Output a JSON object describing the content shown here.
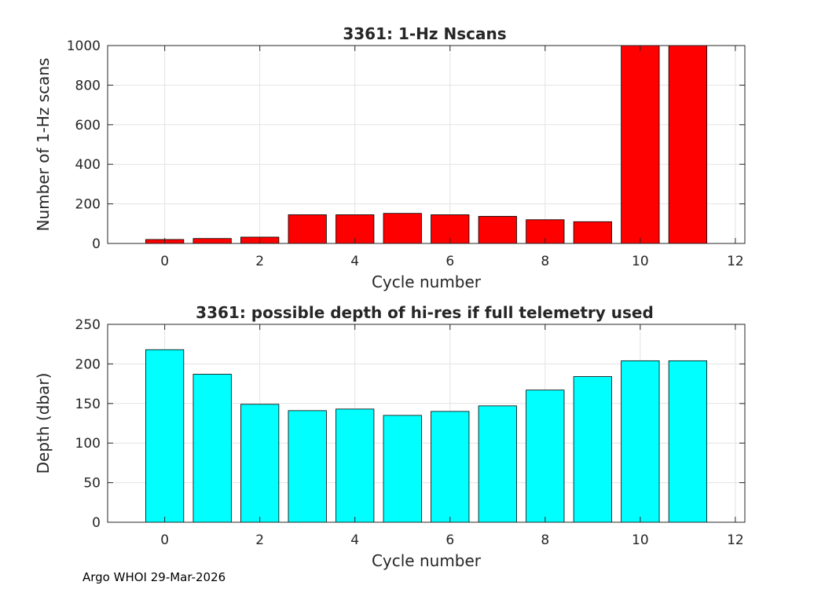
{
  "chart_data": [
    {
      "type": "bar",
      "title": "3361: 1-Hz Nscans",
      "xlabel": "Cycle number",
      "ylabel": "Number of 1-Hz scans",
      "x": [
        0,
        1,
        2,
        3,
        4,
        5,
        6,
        7,
        8,
        9,
        10,
        11
      ],
      "values": [
        20,
        25,
        32,
        145,
        145,
        152,
        145,
        137,
        120,
        110,
        1000,
        1000
      ],
      "xlim": [
        -1.2,
        12.2
      ],
      "ylim": [
        0,
        1000
      ],
      "xticks": [
        0,
        2,
        4,
        6,
        8,
        10,
        12
      ],
      "yticks": [
        0,
        200,
        400,
        600,
        800,
        1000
      ],
      "bar_color": "#ff0000",
      "grid": true
    },
    {
      "type": "bar",
      "title": "3361: possible depth of hi-res if full telemetry used",
      "xlabel": "Cycle number",
      "ylabel": "Depth (dbar)",
      "x": [
        0,
        1,
        2,
        3,
        4,
        5,
        6,
        7,
        8,
        9,
        10,
        11
      ],
      "values": [
        218,
        187,
        149,
        141,
        143,
        135,
        140,
        147,
        167,
        184,
        204,
        204
      ],
      "xlim": [
        -1.2,
        12.2
      ],
      "ylim": [
        0,
        250
      ],
      "xticks": [
        0,
        2,
        4,
        6,
        8,
        10,
        12
      ],
      "yticks": [
        0,
        50,
        100,
        150,
        200,
        250
      ],
      "bar_color": "#00ffff",
      "grid": true
    }
  ],
  "footer": "Argo WHOI 29-Mar-2026"
}
